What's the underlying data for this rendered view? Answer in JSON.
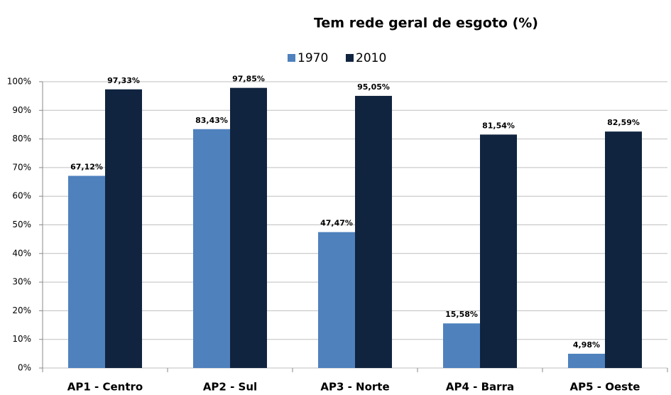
{
  "chart_data": {
    "type": "bar",
    "title": "Tem rede geral de esgoto (%)",
    "categories": [
      "AP1 - Centro",
      "AP2 - Sul",
      "AP3 - Norte",
      "AP4 - Barra",
      "AP5 - Oeste"
    ],
    "series": [
      {
        "name": "1970",
        "color": "#4f81bd",
        "values": [
          67.12,
          83.43,
          47.47,
          15.58,
          4.98
        ],
        "value_labels": [
          "67,12%",
          "83,43%",
          "47,47%",
          "15,58%",
          "4,98%"
        ]
      },
      {
        "name": "2010",
        "color": "#10243f",
        "values": [
          97.33,
          97.85,
          95.05,
          81.54,
          82.59
        ],
        "value_labels": [
          "97,33%",
          "97,85%",
          "95,05%",
          "81,54%",
          "82,59%"
        ]
      }
    ],
    "ylim": [
      0,
      100
    ],
    "yticks": [
      {
        "value": 0,
        "label": "0%"
      },
      {
        "value": 10,
        "label": "10%"
      },
      {
        "value": 20,
        "label": "20%"
      },
      {
        "value": 30,
        "label": "30%"
      },
      {
        "value": 40,
        "label": "40%"
      },
      {
        "value": 50,
        "label": "50%"
      },
      {
        "value": 60,
        "label": "60%"
      },
      {
        "value": 70,
        "label": "70%"
      },
      {
        "value": 80,
        "label": "80%"
      },
      {
        "value": 90,
        "label": "90%"
      },
      {
        "value": 100,
        "label": "100%"
      }
    ],
    "grid": true,
    "legend": "top"
  }
}
